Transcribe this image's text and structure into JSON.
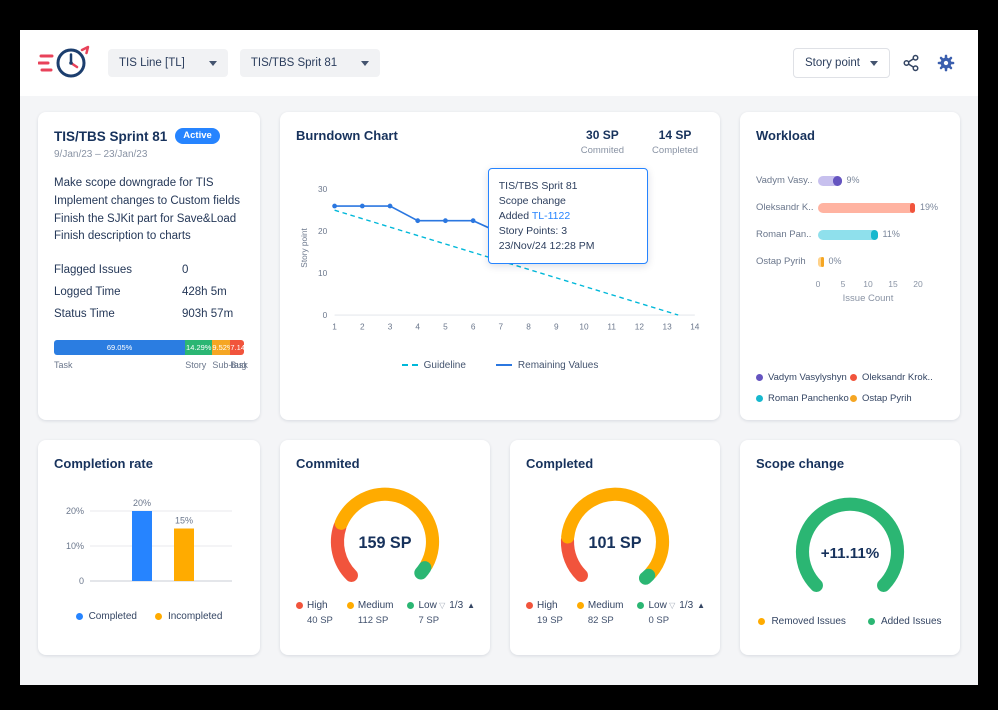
{
  "header": {
    "board_select": {
      "label": "TIS Line [TL]"
    },
    "sprint_select": {
      "label": "TIS/TBS Sprit 81"
    },
    "unit_select": {
      "label": "Story point"
    }
  },
  "sprint_card": {
    "title": "TIS/TBS Sprint 81",
    "status_badge": "Active",
    "date_range": "9/Jan/23 – 23/Jan/23",
    "description_lines": [
      "Make scope downgrade for TIS",
      "Implement changes to Custom fields",
      "Finish the SJKit part for Save&Load",
      "Finish description to charts"
    ],
    "stats": [
      {
        "label": "Flagged Issues",
        "value": "0"
      },
      {
        "label": "Logged Time",
        "value": "428h 5m"
      },
      {
        "label": "Status Time",
        "value": "903h 57m"
      }
    ],
    "issue_distribution": [
      {
        "label": "Task",
        "pct_label": "69.05%",
        "value": 69.05,
        "color": "#2b7de1"
      },
      {
        "label": "Story",
        "pct_label": "14.29%",
        "value": 14.29,
        "color": "#2bb673"
      },
      {
        "label": "Sub-task",
        "pct_label": "9.52%",
        "value": 9.52,
        "color": "#f5a623"
      },
      {
        "label": "Bug",
        "pct_label": "7.14%",
        "value": 7.14,
        "color": "#f1543c"
      }
    ]
  },
  "burndown": {
    "title": "Burndown Chart",
    "summary": [
      {
        "value": "30 SP",
        "label": "Commited"
      },
      {
        "value": "14 SP",
        "label": "Completed"
      }
    ],
    "tooltip": {
      "sprint": "TIS/TBS Sprit 81",
      "event": "Scope change",
      "added_prefix": "Added",
      "issue_key": "TL-1122",
      "story_points": "Story Points: 3",
      "timestamp": "23/Nov/24 12:28 PM"
    },
    "legend": [
      {
        "label": "Guideline",
        "color": "#00b8d9",
        "dashed": true
      },
      {
        "label": "Remaining Values",
        "color": "#2b77e0",
        "dashed": false
      }
    ],
    "chart": {
      "type": "line",
      "ylabel": "Story point",
      "y_ticks": [
        0,
        10,
        20,
        30
      ],
      "y_max": 32,
      "x_ticks": [
        "1",
        "2",
        "3",
        "4",
        "5",
        "6",
        "7",
        "8",
        "9",
        "10",
        "11",
        "12",
        "13",
        "14"
      ],
      "x_max": 14,
      "guideline": {
        "x": [
          1,
          13.4
        ],
        "y": [
          25,
          0
        ]
      },
      "remaining": {
        "x": [
          1,
          2,
          3,
          4,
          5,
          6,
          7,
          8,
          9
        ],
        "y": [
          26,
          26,
          26,
          22.5,
          22.5,
          22.5,
          19.5,
          19.5,
          20
        ]
      }
    }
  },
  "workload": {
    "title": "Workload",
    "x_max": 20,
    "x_ticks": [
      "0",
      "5",
      "10",
      "15",
      "20"
    ],
    "xlabel": "Issue Count",
    "rows": [
      {
        "name": "Vadym Vasy..",
        "pct": "9%",
        "track": 4.7,
        "cap": 1.8,
        "color": "#6554c0",
        "light": "#c7c0ee"
      },
      {
        "name": "Oleksandr K..",
        "pct": "19%",
        "track": 19.4,
        "cap": 1.1,
        "color": "#f1543c",
        "light": "#ffb3a1"
      },
      {
        "name": "Roman Pan..",
        "pct": "11%",
        "track": 11.9,
        "cap": 1.4,
        "color": "#17b8ce",
        "light": "#8fe0ec"
      },
      {
        "name": "Ostap Pyrih",
        "pct": "0%",
        "track": 1.1,
        "cap": 0.5,
        "color": "#f5a623",
        "light": "#ffd28a"
      }
    ],
    "legend": [
      {
        "label": "Vadym Vasylyshyn",
        "color": "#6554c0"
      },
      {
        "label": "Oleksandr Krok..",
        "color": "#f1543c"
      },
      {
        "label": "Roman Panchenko",
        "color": "#17b8ce"
      },
      {
        "label": "Ostap Pyrih",
        "color": "#f5a623"
      }
    ]
  },
  "completion": {
    "title": "Completion rate",
    "chart": {
      "type": "bar",
      "y_ticks": [
        "0",
        "10%",
        "20%"
      ],
      "y_values": [
        0,
        10,
        20
      ],
      "y_max": 24,
      "bars": [
        {
          "label": "Completed",
          "value": 20,
          "data_label": "20%",
          "color": "#2684ff"
        },
        {
          "label": "Incompleted",
          "value": 15,
          "data_label": "15%",
          "color": "#ffab00"
        }
      ]
    },
    "legend": [
      {
        "label": "Completed",
        "color": "#2684ff"
      },
      {
        "label": "Incompleted",
        "color": "#ffab00"
      }
    ]
  },
  "commited_card": {
    "title": "Commited",
    "center_label": "159 SP",
    "pager": "1/3",
    "segments": [
      {
        "label": "High",
        "value": 40,
        "value_label": "40 SP",
        "color": "#f1543c"
      },
      {
        "label": "Medium",
        "value": 112,
        "value_label": "112 SP",
        "color": "#ffab00"
      },
      {
        "label": "Low",
        "value": 7,
        "value_label": "7 SP",
        "color": "#2bb673"
      }
    ]
  },
  "completed_card": {
    "title": "Completed",
    "center_label": "101 SP",
    "pager": "1/3",
    "segments": [
      {
        "label": "High",
        "value": 19,
        "value_label": "19 SP",
        "color": "#f1543c"
      },
      {
        "label": "Medium",
        "value": 82,
        "value_label": "82 SP",
        "color": "#ffab00"
      },
      {
        "label": "Low",
        "value": 0,
        "value_label": "0 SP",
        "color": "#2bb673",
        "show_zero": true
      }
    ]
  },
  "scope_card": {
    "title": "Scope change",
    "center_label": "+11.11%",
    "segments": [
      {
        "label": "Removed Issues",
        "value": 0,
        "color": "#ffab00"
      },
      {
        "label": "Added Issues",
        "value": 100,
        "color": "#2bb673"
      }
    ],
    "legend": [
      {
        "label": "Removed Issues",
        "color": "#ffab00"
      },
      {
        "label": "Added Issues",
        "color": "#2bb673"
      }
    ]
  }
}
